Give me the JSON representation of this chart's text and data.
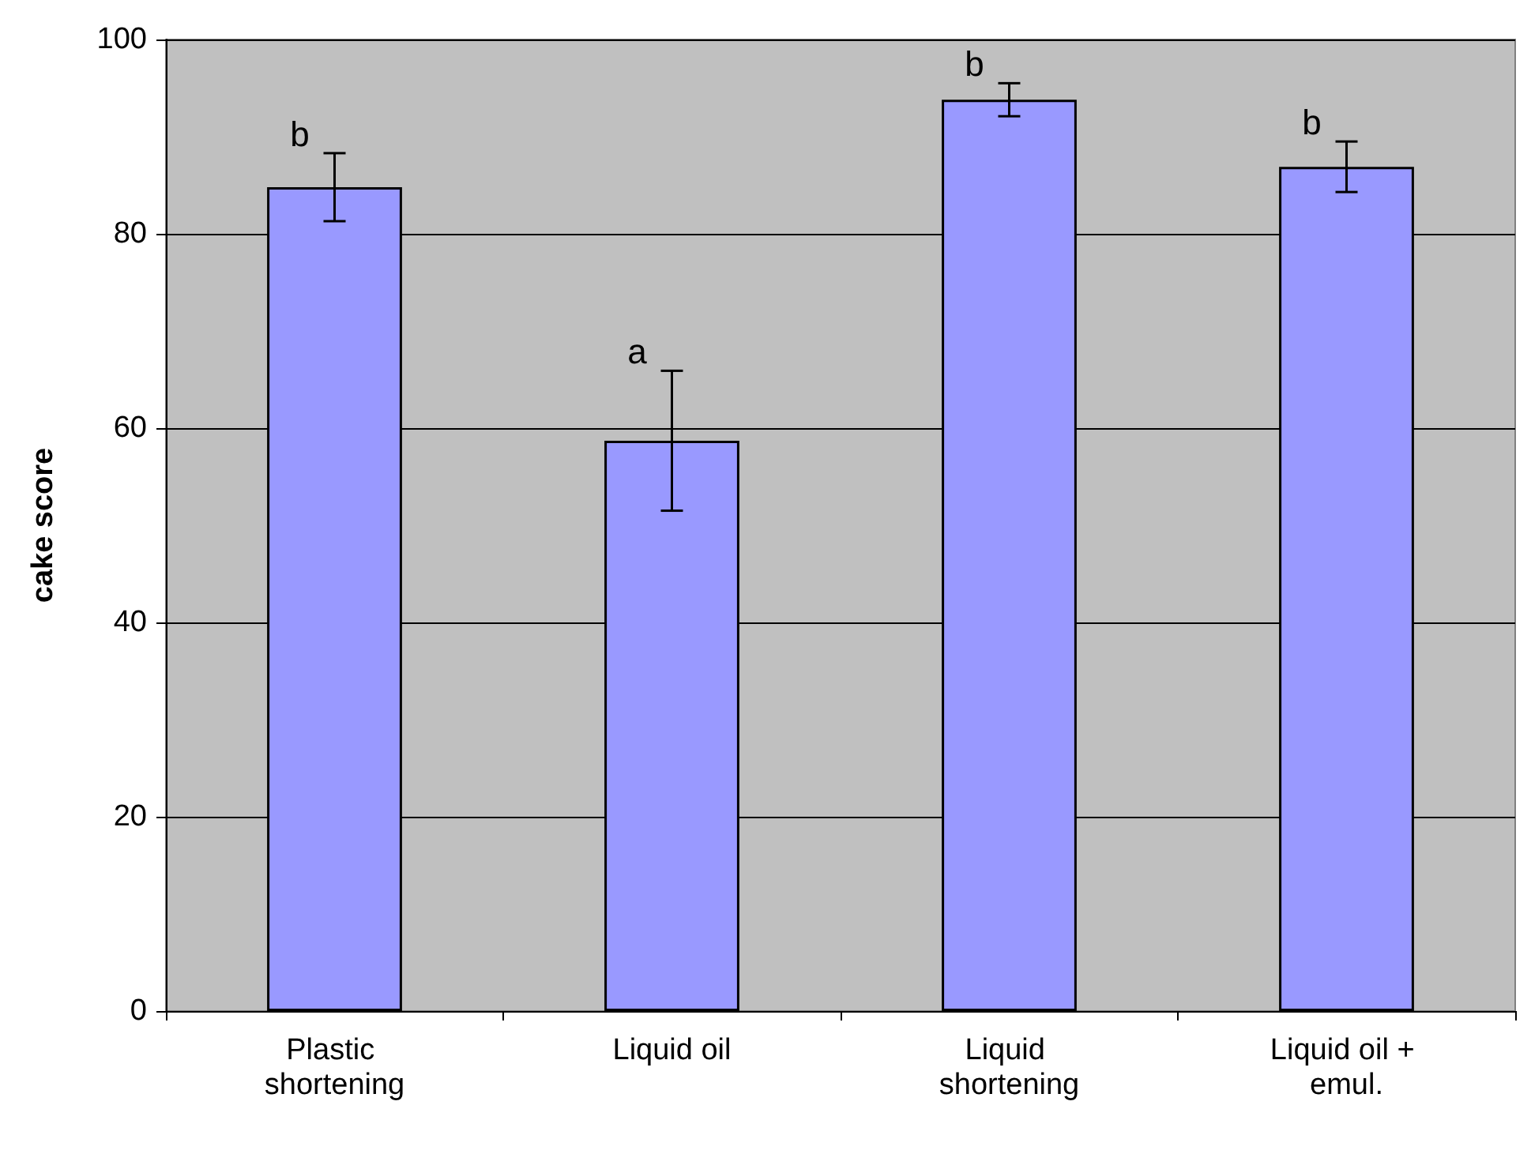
{
  "chart_data": {
    "type": "bar",
    "ylabel": "cake score",
    "categories": [
      "Plastic shortening",
      "Liquid oil",
      "Liquid shortening",
      "Liquid oil + emul."
    ],
    "values": [
      84.8,
      58.7,
      93.8,
      86.9
    ],
    "errors": [
      3.5,
      7.2,
      1.7,
      2.6
    ],
    "color": "#9999ff",
    "ylim": [
      0,
      100
    ],
    "yticks": [
      0,
      20,
      40,
      60,
      80,
      100
    ],
    "grid": "y",
    "annotations": [
      {
        "text": "b",
        "x": "Plastic shortening",
        "y": 88.3
      },
      {
        "text": "a",
        "x": "Liquid oil",
        "y": 65.9
      },
      {
        "text": "b",
        "x": "Liquid shortening",
        "y": 95.5
      },
      {
        "text": "b",
        "x": "Liquid oil + emul.",
        "y": 89.5
      }
    ]
  }
}
